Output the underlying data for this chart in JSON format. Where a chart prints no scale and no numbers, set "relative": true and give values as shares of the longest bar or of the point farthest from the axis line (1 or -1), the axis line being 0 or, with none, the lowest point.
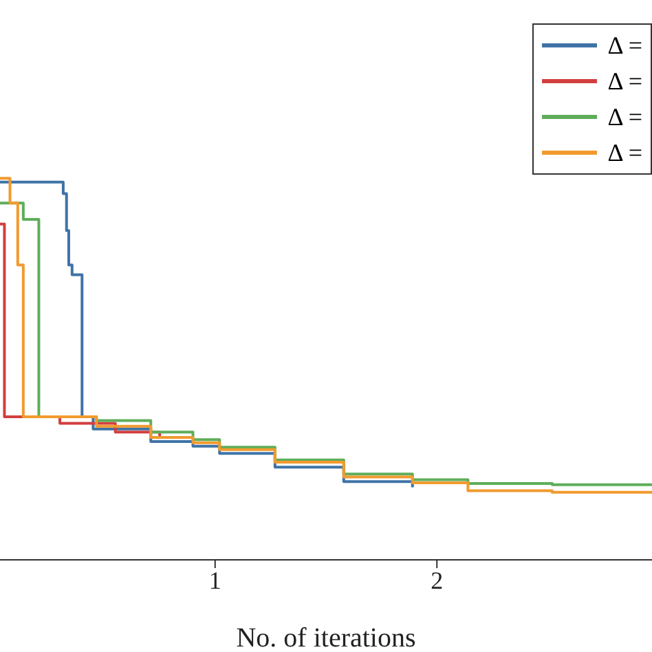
{
  "chart_data": {
    "type": "step",
    "xlabel": "No. of iterations",
    "relative": true,
    "xlim": [
      0.03,
      2.97
    ],
    "xticks": [
      1,
      2
    ],
    "legend": "top right",
    "grid": false,
    "series": [
      {
        "name": "Δ =",
        "color": "#3f73a6",
        "x": [
          0.03,
          0.315,
          0.33,
          0.34,
          0.355,
          0.4,
          0.45,
          0.71,
          0.9,
          1.02,
          1.27,
          1.58,
          1.89
        ],
        "values": [
          0.99,
          0.96,
          0.863,
          0.773,
          0.747,
          0.375,
          0.343,
          0.31,
          0.298,
          0.279,
          0.243,
          0.205,
          0.19
        ]
      },
      {
        "name": "Δ =",
        "color": "#d23f3f",
        "x": [
          0.03,
          0.05,
          0.3,
          0.55,
          0.75
        ],
        "values": [
          0.88,
          0.375,
          0.358,
          0.335,
          0.318
        ]
      },
      {
        "name": "Δ =",
        "color": "#5fad5a",
        "x": [
          0.03,
          0.135,
          0.2,
          0.205,
          0.465,
          0.71,
          0.9,
          1.02,
          1.27,
          1.58,
          1.89,
          2.14,
          2.52,
          2.97
        ],
        "values": [
          0.935,
          0.892,
          0.892,
          0.375,
          0.365,
          0.335,
          0.315,
          0.295,
          0.262,
          0.225,
          0.21,
          0.2,
          0.197,
          0.195
        ]
      },
      {
        "name": "Δ =",
        "color": "#f29a2e",
        "x": [
          0.03,
          0.075,
          0.11,
          0.135,
          0.465,
          0.71,
          0.9,
          1.02,
          1.27,
          1.58,
          1.89,
          2.14,
          2.52,
          2.97
        ],
        "values": [
          1,
          0.935,
          0.773,
          0.375,
          0.35,
          0.321,
          0.307,
          0.289,
          0.256,
          0.217,
          0.202,
          0.181,
          0.177,
          0.173
        ]
      }
    ]
  }
}
